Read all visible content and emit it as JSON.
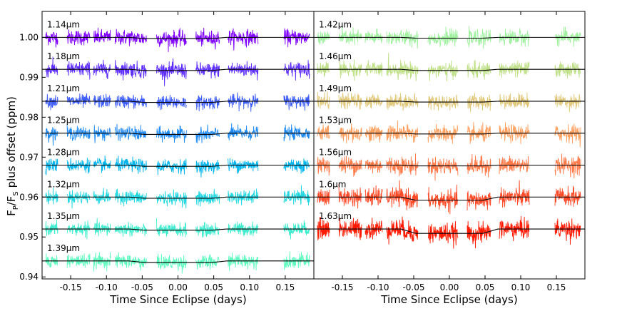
{
  "chart_data": [
    {
      "type": "scatter",
      "panel": "left",
      "title": "",
      "xlabel": "Time Since Eclipse (days)",
      "ylabel": "F_P/F_S plus offset (ppm)",
      "ylabel_main": "F",
      "ylabel_sub1": "P",
      "ylabel_slash": "/F",
      "ylabel_sub2": "S",
      "ylabel_rest": " plus offset (ppm)",
      "xlim": [
        -0.19,
        0.19
      ],
      "ylim": [
        0.9395,
        1.0065
      ],
      "xticks": [
        -0.15,
        -0.1,
        -0.05,
        0.0,
        0.05,
        0.1,
        0.15
      ],
      "xtick_labels": [
        "-0.15",
        "-0.10",
        "-0.05",
        "0.00",
        "0.05",
        "0.10",
        "0.15"
      ],
      "yticks": [
        0.94,
        0.95,
        0.96,
        0.97,
        0.98,
        0.99,
        1.0
      ],
      "ytick_labels": [
        "0.94",
        "0.95",
        "0.96",
        "0.97",
        "0.98",
        "0.99",
        "1.00"
      ],
      "orbits_x_ranges": [
        [
          -0.185,
          -0.168
        ],
        [
          -0.155,
          -0.123
        ],
        [
          -0.118,
          -0.094
        ],
        [
          -0.088,
          -0.044
        ],
        [
          -0.03,
          0.012
        ],
        [
          0.025,
          0.058
        ],
        [
          0.07,
          0.112
        ],
        [
          0.148,
          0.184
        ]
      ],
      "series": [
        {
          "name": "1.14μm",
          "baseline": 1.0,
          "eclipse_depth": 0.0003,
          "noise": 0.0023,
          "color": "#7f00ff"
        },
        {
          "name": "1.18μm",
          "baseline": 0.992,
          "eclipse_depth": 0.0003,
          "noise": 0.0023,
          "color": "#5f2ffe"
        },
        {
          "name": "1.21μm",
          "baseline": 0.984,
          "eclipse_depth": 0.0003,
          "noise": 0.002,
          "color": "#3f5ef9"
        },
        {
          "name": "1.25μm",
          "baseline": 0.976,
          "eclipse_depth": 0.0003,
          "noise": 0.002,
          "color": "#1f8af2"
        },
        {
          "name": "1.28μm",
          "baseline": 0.968,
          "eclipse_depth": 0.0003,
          "noise": 0.002,
          "color": "#00b4ec"
        },
        {
          "name": "1.32μm",
          "baseline": 0.96,
          "eclipse_depth": 0.0003,
          "noise": 0.002,
          "color": "#20d7e1"
        },
        {
          "name": "1.35μm",
          "baseline": 0.952,
          "eclipse_depth": 0.0003,
          "noise": 0.002,
          "color": "#40eccf"
        },
        {
          "name": "1.39μm",
          "baseline": 0.944,
          "eclipse_depth": 0.0004,
          "noise": 0.0021,
          "color": "#60fac0"
        }
      ]
    },
    {
      "type": "scatter",
      "panel": "right",
      "title": "",
      "xlabel": "Time Since Eclipse (days)",
      "ylabel": "",
      "xlim": [
        -0.19,
        0.19
      ],
      "ylim": [
        0.9395,
        1.0065
      ],
      "xticks": [
        -0.15,
        -0.1,
        -0.05,
        0.0,
        0.05,
        0.1,
        0.15
      ],
      "xtick_labels": [
        "-0.15",
        "-0.10",
        "-0.05",
        "0.00",
        "0.05",
        "0.10",
        "0.15"
      ],
      "orbits_x_ranges": [
        [
          -0.185,
          -0.168
        ],
        [
          -0.155,
          -0.123
        ],
        [
          -0.118,
          -0.094
        ],
        [
          -0.088,
          -0.044
        ],
        [
          -0.03,
          0.012
        ],
        [
          0.025,
          0.058
        ],
        [
          0.07,
          0.112
        ],
        [
          0.148,
          0.184
        ]
      ],
      "series": [
        {
          "name": "1.42μm",
          "baseline": 1.0,
          "eclipse_depth": 0.0002,
          "noise": 0.0023,
          "color": "#a0f0a0"
        },
        {
          "name": "1.46μm",
          "baseline": 0.992,
          "eclipse_depth": 0.0003,
          "noise": 0.0023,
          "color": "#c0e08a"
        },
        {
          "name": "1.49μm",
          "baseline": 0.984,
          "eclipse_depth": 0.0002,
          "noise": 0.0022,
          "color": "#e0c77a"
        },
        {
          "name": "1.53μm",
          "baseline": 0.976,
          "eclipse_depth": 0.0002,
          "noise": 0.0025,
          "color": "#ffa060"
        },
        {
          "name": "1.56μm",
          "baseline": 0.968,
          "eclipse_depth": 0.0002,
          "noise": 0.0026,
          "color": "#ff7a48"
        },
        {
          "name": "1.6μm",
          "baseline": 0.96,
          "eclipse_depth": 0.0008,
          "noise": 0.0028,
          "color": "#ff4a28"
        },
        {
          "name": "1.63μm",
          "baseline": 0.952,
          "eclipse_depth": 0.0011,
          "noise": 0.003,
          "color": "#ff1a00"
        }
      ]
    }
  ]
}
